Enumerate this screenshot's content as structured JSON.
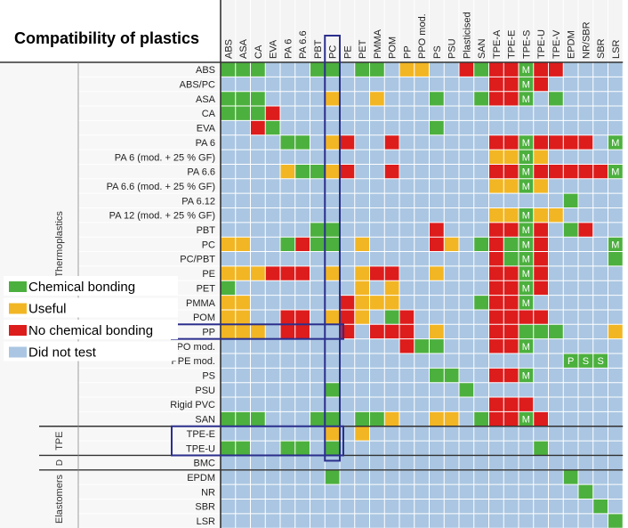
{
  "title": "Compatibility of plastics",
  "groups": [
    "Thermoplastics",
    "TPE",
    "D",
    "Elastomers"
  ],
  "legend": [
    {
      "label": "Chemical bonding",
      "color": "#4cb03e"
    },
    {
      "label": "Useful",
      "color": "#f2b624"
    },
    {
      "label": "No chemical bonding",
      "color": "#dd1c1c"
    },
    {
      "label": "Did not test",
      "color": "#aac6e2"
    }
  ],
  "chart_data": {
    "type": "heatmap",
    "title": "Compatibility of plastics",
    "columns": [
      "ABS",
      "ASA",
      "CA",
      "EVA",
      "PA 6",
      "PA 6.6",
      "PBT",
      "PC",
      "PE",
      "PET",
      "PMMA",
      "POM",
      "PP",
      "PPO mod.",
      "PS",
      "PSU",
      "Plasticised",
      "SAN",
      "TPE-A",
      "TPE-E",
      "TPE-S",
      "TPE-U",
      "TPE-V",
      "EPDM",
      "NR/SBR",
      "SBR",
      "LSR"
    ],
    "rows": [
      "ABS",
      "ABS/PC",
      "ASA",
      "CA",
      "EVA",
      "PA 6",
      "PA 6 (mod. + 25 % GF)",
      "PA 6.6",
      "PA 6.6 (mod. + 25 % GF)",
      "PA 6.12",
      "PA 12 (mod. + 25 % GF)",
      "PBT",
      "PC",
      "PC/PBT",
      "PE",
      "PET",
      "PMMA",
      "POM",
      "PP",
      "PPO mod.",
      "PPE mod.",
      "PS",
      "PSU",
      "Rigid PVC",
      "SAN",
      "TPE-E",
      "TPE-U",
      "BMC",
      "EPDM",
      "NR",
      "SBR",
      "LSR"
    ],
    "codes": {
      "G": "Chemical bonding",
      "Y": "Useful",
      "R": "No chemical bonding",
      "B": "Did not test"
    },
    "cell_labels": {
      "M": "M",
      "P": "P",
      "S": "S"
    },
    "cells": [
      "GGGBBBGGBGGBYYBBRGRRMRRBBBB",
      "BBBBBBBBBBBBBBBBBBRRMRBBBBB",
      "GGGBBBBYBBYBBBGBBGRRMBGBBBB",
      "GGGRBBBBBBBBBBBBBBBBBBBBBBB",
      "BBRGBBBBBBBBBBGBBBBBBBBBBBB",
      "BBBBGGBYRBBRBBBBBBRRMRRRRBM",
      "BBBBBBBBBBBBBBBBBBYYMYBBBBB",
      "BBBBYGGYRBBRBBBBBBRRMRRRRRM",
      "BBBBBBBBBBBBBBBBBBYYMYBBBBB",
      "BBBBBBBBBBBBBBBBBBBBBBBGBBB",
      "BBBBBBBBBBBBBBBBBBYYMYYBBBB",
      "BBBBBBGGBBBBBBRBBBRRMRBGRBB",
      "YYBBGRGGBYBBBBRYBGRGMRBBBBM",
      "BBBBBBBBBBBBBBBBBBRGMRBBBBG",
      "YYYRRRBYBYRRBBYBBBRRMRBBBBB",
      "GBBBBBBBBYBYBBBBBBRRMRBBBBB",
      "YYBBBBBBRYYYBBBBBGRRMBBBBBB",
      "YYBBRRBYRYBGRBBBBBRRRRBBBBB",
      "YYYBRRBBRBRRRBYBBBRRGGGBBBY",
      "BBBBBBBBBBBBRGGBBBRRMBBBBBB",
      "BBBBBBBBBBBBBBBBBBBBBBBPSSB",
      "BBBBBBBBBBBBBBGGBBRRMBBBBBB",
      "BBBBBBBGBBBBBBBBGBBBBBBBBBB",
      "BBBBBBBBBBBBBBBBBBRRRBBBBBB",
      "GGGBBBGGBGGYBBYYBGRRMRBBBBB",
      "BBBBBBBYBYBBBBBBBBBBBBBBBBB",
      "GGBBGGBGBBBBBBBBBBBBBGBBBBB",
      "BBBBBBBBBBBBBBBBBBBBBBBBBBB",
      "BBBBBBBGBBBBBBBBBBBBBBBGBBB",
      "BBBBBBBBBBBBBBBBBBBBBBBBGBB",
      "BBBBBBBBBBBBBBBBBBBBBBBBBGB",
      "BBBBBBBBBBBBBBBBBBBBBBBBBBG"
    ]
  }
}
